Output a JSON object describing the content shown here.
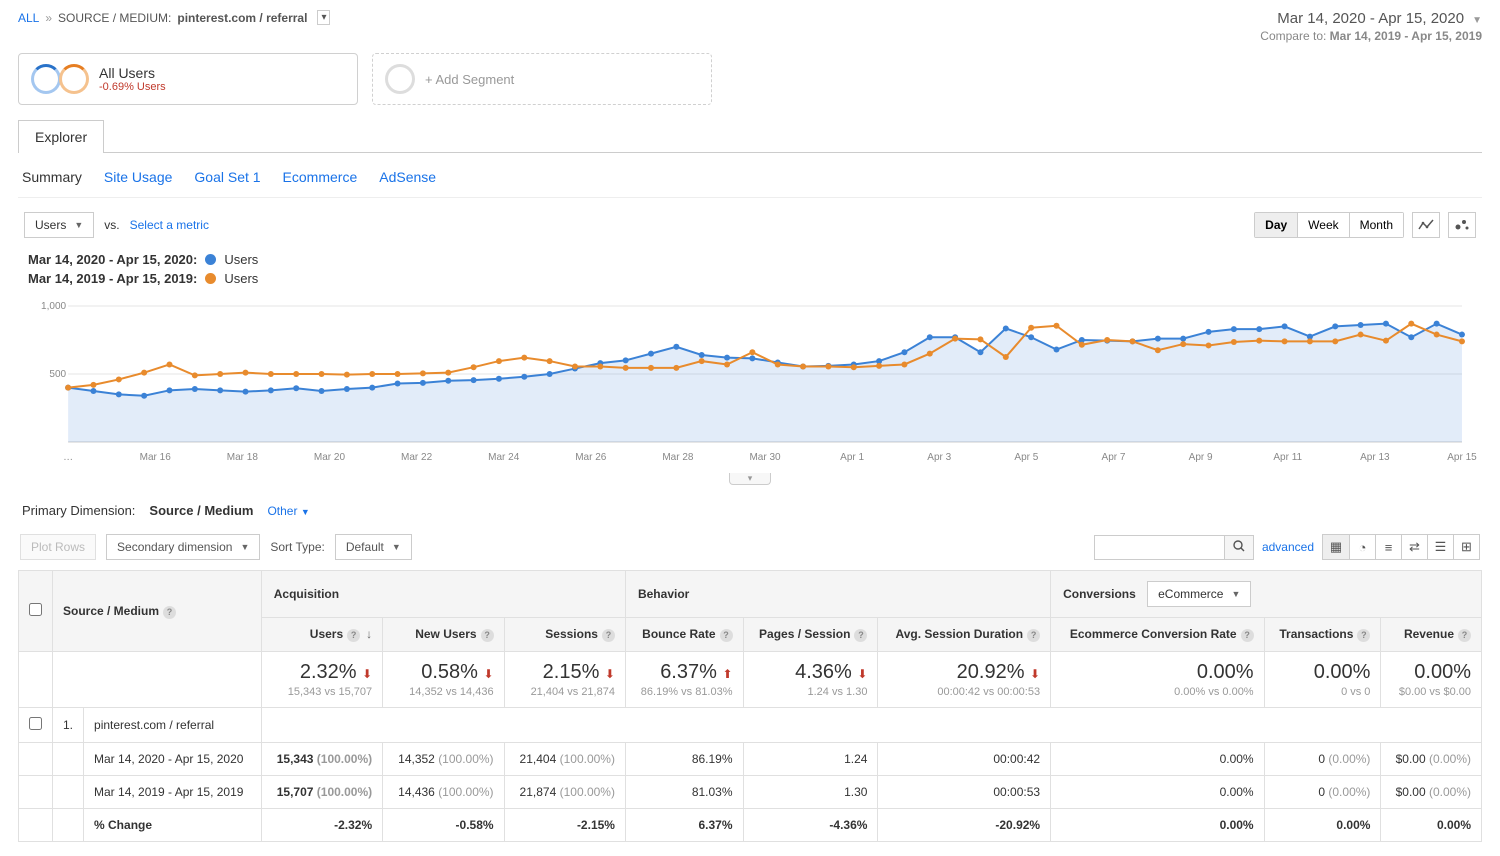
{
  "breadcrumb": {
    "all": "ALL",
    "label": "SOURCE / MEDIUM:",
    "value": "pinterest.com / referral"
  },
  "date_range": {
    "primary": "Mar 14, 2020 - Apr 15, 2020",
    "compare_label": "Compare to:",
    "compare_value": "Mar 14, 2019 - Apr 15, 2019"
  },
  "segments": {
    "all_users": {
      "title": "All Users",
      "sub": "-0.69% Users"
    },
    "add": "+ Add Segment"
  },
  "explorer_tab": "Explorer",
  "sub_tabs": [
    "Summary",
    "Site Usage",
    "Goal Set 1",
    "Ecommerce",
    "AdSense"
  ],
  "metric_selector": {
    "primary": "Users",
    "vs": "vs.",
    "select": "Select a metric"
  },
  "time_buttons": [
    "Day",
    "Week",
    "Month"
  ],
  "legend": {
    "r1_label": "Mar 14, 2020 - Apr 15, 2020:",
    "r1_name": "Users",
    "r2_label": "Mar 14, 2019 - Apr 15, 2019:",
    "r2_name": "Users"
  },
  "chart": {
    "type": "line",
    "ylim": [
      0,
      1000
    ],
    "yticks": [
      500,
      1000
    ],
    "ytick_labels": [
      "500",
      "1,000"
    ],
    "x_labels": [
      "…",
      "Mar 16",
      "Mar 18",
      "Mar 20",
      "Mar 22",
      "Mar 24",
      "Mar 26",
      "Mar 28",
      "Mar 30",
      "Apr 1",
      "Apr 3",
      "Apr 5",
      "Apr 7",
      "Apr 9",
      "Apr 11",
      "Apr 13",
      "Apr 15"
    ],
    "colors": {
      "series1": "#3b82d6",
      "series1_fill": "#cfe3f7",
      "series2": "#e88b2d",
      "grid": "#e5e5e5",
      "text": "#888888"
    },
    "series1": [
      400,
      375,
      350,
      340,
      380,
      390,
      380,
      370,
      380,
      395,
      375,
      390,
      400,
      430,
      435,
      450,
      455,
      465,
      480,
      500,
      540,
      580,
      600,
      650,
      700,
      640,
      620,
      615,
      585,
      555,
      560,
      570,
      595,
      660,
      770,
      770,
      660,
      835,
      770,
      680,
      750,
      745,
      740,
      760,
      760,
      810,
      830,
      830,
      850,
      775,
      850,
      860,
      870,
      770,
      870,
      790
    ],
    "series2": [
      400,
      420,
      460,
      510,
      570,
      490,
      500,
      510,
      500,
      500,
      500,
      495,
      500,
      500,
      505,
      510,
      550,
      595,
      620,
      595,
      555,
      555,
      545,
      545,
      545,
      595,
      570,
      660,
      570,
      555,
      555,
      550,
      560,
      570,
      650,
      760,
      755,
      625,
      840,
      855,
      715,
      750,
      740,
      675,
      720,
      710,
      735,
      745,
      740,
      740,
      740,
      790,
      745,
      870,
      790,
      740
    ]
  },
  "primary_dimension": {
    "label": "Primary Dimension:",
    "active": "Source / Medium",
    "other": "Other"
  },
  "toolbar": {
    "plot_rows": "Plot Rows",
    "secondary_dim": "Secondary dimension",
    "sort_type_label": "Sort Type:",
    "sort_default": "Default",
    "advanced": "advanced"
  },
  "table": {
    "head_source": "Source / Medium",
    "groups": {
      "acquisition": "Acquisition",
      "behavior": "Behavior",
      "conversions": "Conversions",
      "conv_dd": "eCommerce"
    },
    "cols": [
      "Users",
      "New Users",
      "Sessions",
      "Bounce Rate",
      "Pages / Session",
      "Avg. Session Duration",
      "Ecommerce Conversion Rate",
      "Transactions",
      "Revenue"
    ],
    "summary": [
      {
        "pct": "2.32%",
        "dir": "down",
        "sub": "15,343 vs 15,707"
      },
      {
        "pct": "0.58%",
        "dir": "down",
        "sub": "14,352 vs 14,436"
      },
      {
        "pct": "2.15%",
        "dir": "down",
        "sub": "21,404 vs 21,874"
      },
      {
        "pct": "6.37%",
        "dir": "up",
        "sub": "86.19% vs 81.03%"
      },
      {
        "pct": "4.36%",
        "dir": "down",
        "sub": "1.24 vs 1.30"
      },
      {
        "pct": "20.92%",
        "dir": "down",
        "sub": "00:00:42 vs 00:00:53"
      },
      {
        "pct": "0.00%",
        "dir": "none",
        "sub": "0.00% vs 0.00%"
      },
      {
        "pct": "0.00%",
        "dir": "none",
        "sub": "0 vs 0"
      },
      {
        "pct": "0.00%",
        "dir": "none",
        "sub": "$0.00 vs $0.00"
      }
    ],
    "row_label": "pinterest.com / referral",
    "period1_label": "Mar 14, 2020 - Apr 15, 2020",
    "period2_label": "Mar 14, 2019 - Apr 15, 2019",
    "change_label": "% Change",
    "period1": [
      {
        "v": "15,343",
        "p": "(100.00%)",
        "b": true
      },
      {
        "v": "14,352",
        "p": "(100.00%)"
      },
      {
        "v": "21,404",
        "p": "(100.00%)"
      },
      {
        "v": "86.19%"
      },
      {
        "v": "1.24"
      },
      {
        "v": "00:00:42"
      },
      {
        "v": "0.00%"
      },
      {
        "v": "0",
        "p": "(0.00%)"
      },
      {
        "v": "$0.00",
        "p": "(0.00%)"
      }
    ],
    "period2": [
      {
        "v": "15,707",
        "p": "(100.00%)",
        "b": true
      },
      {
        "v": "14,436",
        "p": "(100.00%)"
      },
      {
        "v": "21,874",
        "p": "(100.00%)"
      },
      {
        "v": "81.03%"
      },
      {
        "v": "1.30"
      },
      {
        "v": "00:00:53"
      },
      {
        "v": "0.00%"
      },
      {
        "v": "0",
        "p": "(0.00%)"
      },
      {
        "v": "$0.00",
        "p": "(0.00%)"
      }
    ],
    "change": [
      "-2.32%",
      "-0.58%",
      "-2.15%",
      "6.37%",
      "-4.36%",
      "-20.92%",
      "0.00%",
      "0.00%",
      "0.00%"
    ]
  }
}
